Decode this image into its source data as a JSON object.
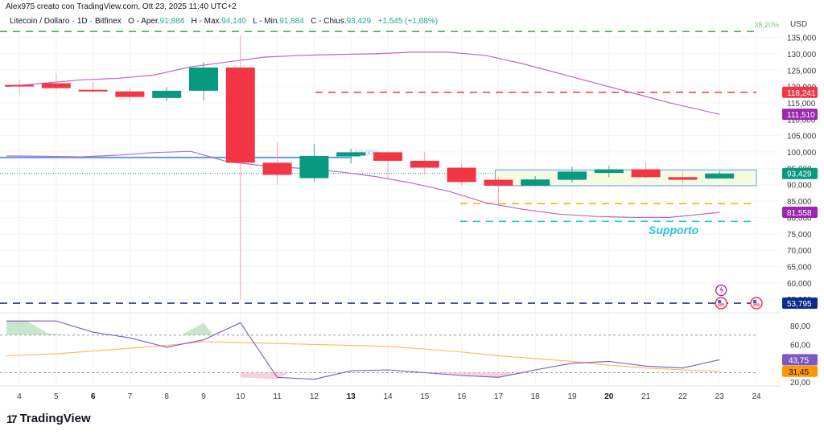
{
  "header": {
    "author_line": "Alex975 creato con TradingView.com, Ott 23, 2025 11:40 UTC+2",
    "symbol": "Litecoin / Dollaro",
    "interval": "1D",
    "exchange": "Bitfinex",
    "open_label": "O - Aper.",
    "open_value": "91,884",
    "high_label": "H - Max.",
    "high_value": "94,140",
    "low_label": "L - Min.",
    "low_value": "91,884",
    "close_label": "C - Chius.",
    "close_value": "93,429",
    "change": "+1,545 (+1,68%)"
  },
  "price_axis": {
    "currency": "USD",
    "ticks": [
      "135,000",
      "130,000",
      "125,000",
      "120,000",
      "115,000",
      "110,000",
      "105,000",
      "100,000",
      "95,000",
      "90,000",
      "85,000",
      "80,000",
      "75,000",
      "70,000",
      "65,000",
      "60,000",
      "55,000"
    ]
  },
  "price_badges": [
    {
      "label": "118,241",
      "color": "#f23645"
    },
    {
      "label": "111,510",
      "color": "#9c27b0"
    },
    {
      "label": "93,429",
      "color": "#089981"
    },
    {
      "label": "81,558",
      "color": "#9c27b0"
    },
    {
      "label": "53,795",
      "color": "#0d2b8c"
    }
  ],
  "rsi_axis": {
    "ticks": [
      "80,00",
      "60,00",
      "20,00"
    ],
    "badges": [
      {
        "label": "43,75",
        "color": "#7e57c2"
      },
      {
        "label": "31,45",
        "color": "#ff9800"
      }
    ]
  },
  "annotations": {
    "fib_382": "38,20%",
    "fib_50": "50,00%",
    "support_label": "Supporto"
  },
  "x_axis": {
    "ticks": [
      {
        "label": "4",
        "bold": false
      },
      {
        "label": "5",
        "bold": false
      },
      {
        "label": "6",
        "bold": true
      },
      {
        "label": "7",
        "bold": false
      },
      {
        "label": "8",
        "bold": false
      },
      {
        "label": "9",
        "bold": false
      },
      {
        "label": "10",
        "bold": false
      },
      {
        "label": "11",
        "bold": false
      },
      {
        "label": "12",
        "bold": false
      },
      {
        "label": "13",
        "bold": true
      },
      {
        "label": "14",
        "bold": false
      },
      {
        "label": "15",
        "bold": false
      },
      {
        "label": "16",
        "bold": false
      },
      {
        "label": "17",
        "bold": false
      },
      {
        "label": "18",
        "bold": false
      },
      {
        "label": "19",
        "bold": false
      },
      {
        "label": "20",
        "bold": true
      },
      {
        "label": "21",
        "bold": false
      },
      {
        "label": "22",
        "bold": false
      },
      {
        "label": "23",
        "bold": false
      },
      {
        "label": "24",
        "bold": false
      }
    ]
  },
  "branding": {
    "logo_mark": "17",
    "logo_text": "TradingView"
  },
  "chart_data": [
    {
      "type": "candlestick",
      "title": "Litecoin / Dollaro · 1D · Bitfinex",
      "xlabel": "",
      "ylabel": "USD",
      "ylim": [
        50000,
        138000
      ],
      "categories": [
        "4",
        "5",
        "6",
        "7",
        "8",
        "9",
        "10",
        "11",
        "12",
        "13",
        "14",
        "15",
        "16",
        "17",
        "18",
        "19",
        "20",
        "21",
        "22",
        "23"
      ],
      "ohlc": [
        {
          "day": "4",
          "open": 120500,
          "high": 122000,
          "low": 117500,
          "close": 120200
        },
        {
          "day": "5",
          "open": 121000,
          "high": 124000,
          "low": 119000,
          "close": 119500
        },
        {
          "day": "6",
          "open": 119000,
          "high": 121500,
          "low": 118200,
          "close": 118500
        },
        {
          "day": "7",
          "open": 118500,
          "high": 119500,
          "low": 115500,
          "close": 116800
        },
        {
          "day": "8",
          "open": 116500,
          "high": 119800,
          "low": 115500,
          "close": 118700
        },
        {
          "day": "9",
          "open": 118700,
          "high": 127500,
          "low": 115800,
          "close": 125800
        },
        {
          "day": "10",
          "open": 125800,
          "high": 135500,
          "low": 55000,
          "close": 96700
        },
        {
          "day": "11",
          "open": 96700,
          "high": 103000,
          "low": 90000,
          "close": 93000
        },
        {
          "day": "12",
          "open": 92000,
          "high": 102500,
          "low": 91000,
          "close": 98800
        },
        {
          "day": "13",
          "open": 98900,
          "high": 101000,
          "low": 96500,
          "close": 99900
        },
        {
          "day": "14",
          "open": 99900,
          "high": 100300,
          "low": 92000,
          "close": 97300
        },
        {
          "day": "15",
          "open": 97300,
          "high": 100000,
          "low": 93000,
          "close": 95200
        },
        {
          "day": "16",
          "open": 95200,
          "high": 96500,
          "low": 89800,
          "close": 90800
        },
        {
          "day": "17",
          "open": 91500,
          "high": 92500,
          "low": 84000,
          "close": 89700
        },
        {
          "day": "18",
          "open": 89700,
          "high": 92600,
          "low": 89700,
          "close": 91600
        },
        {
          "day": "19",
          "open": 91500,
          "high": 95500,
          "low": 90500,
          "close": 94000
        },
        {
          "day": "20",
          "open": 93600,
          "high": 95900,
          "low": 92300,
          "close": 94700
        },
        {
          "day": "21",
          "open": 94700,
          "high": 97000,
          "low": 91800,
          "close": 92300
        },
        {
          "day": "22",
          "open": 92300,
          "high": 94200,
          "low": 89500,
          "close": 91500
        },
        {
          "day": "23",
          "open": 91884,
          "high": 94140,
          "low": 91884,
          "close": 93429
        }
      ],
      "series": [
        {
          "name": "Bollinger Upper",
          "color": "#ba68c8",
          "values": [
            120000,
            121000,
            122000,
            122500,
            123500,
            126000,
            127500,
            129000,
            129500,
            129800,
            130000,
            130500,
            130500,
            129500,
            127000,
            124000,
            121000,
            118000,
            115000,
            111510
          ]
        },
        {
          "name": "Bollinger Lower",
          "color": "#ba68c8",
          "values": [
            98800,
            98700,
            98500,
            99000,
            99800,
            100200,
            97000,
            95800,
            95000,
            94000,
            92500,
            90500,
            88000,
            84500,
            82500,
            81000,
            80300,
            80000,
            80000,
            81558
          ]
        }
      ],
      "horizontal_lines": [
        {
          "label": "38,20%",
          "value": 136800,
          "color": "#4caf50",
          "style": "dashed"
        },
        {
          "label": "118,241",
          "value": 118241,
          "color": "#f23645",
          "style": "dashed"
        },
        {
          "label": "50,00%",
          "value": 98300,
          "color": "#5b9cf6",
          "style": "solid"
        },
        {
          "label": "93,429",
          "value": 93429,
          "color": "#089981",
          "style": "dotted"
        },
        {
          "label": "",
          "value": 84200,
          "color": "#ffb300",
          "style": "dashed"
        },
        {
          "label": "Supporto",
          "value": 78800,
          "color": "#26c6da",
          "style": "dashed"
        },
        {
          "label": "53,795",
          "value": 53795,
          "color": "#283593",
          "style": "dashed"
        }
      ],
      "rectangles": [
        {
          "x_from": "17",
          "x_to": "24",
          "y_from": 89700,
          "y_to": 94500,
          "color": "#5b9cf6",
          "fill": "#f7fbe1"
        }
      ]
    },
    {
      "type": "line",
      "title": "RSI",
      "ylim": [
        15,
        90
      ],
      "categories": [
        "4",
        "5",
        "6",
        "7",
        "8",
        "9",
        "10",
        "11",
        "12",
        "13",
        "14",
        "15",
        "16",
        "17",
        "18",
        "19",
        "20",
        "21",
        "22",
        "23"
      ],
      "levels": [
        70,
        30
      ],
      "series": [
        {
          "name": "RSI",
          "color": "#7e57c2",
          "values": [
            85,
            85,
            73,
            67,
            57,
            65,
            83,
            25,
            23,
            32,
            33,
            30,
            27,
            25,
            33,
            40,
            42,
            37,
            35,
            43.75
          ]
        },
        {
          "name": "RSI MA",
          "color": "#ffb74d",
          "values": [
            48,
            50,
            53,
            56,
            59,
            63,
            62,
            61,
            60,
            59,
            58,
            55,
            52,
            48,
            45,
            42,
            38,
            35,
            33,
            31.45
          ]
        }
      ]
    }
  ]
}
